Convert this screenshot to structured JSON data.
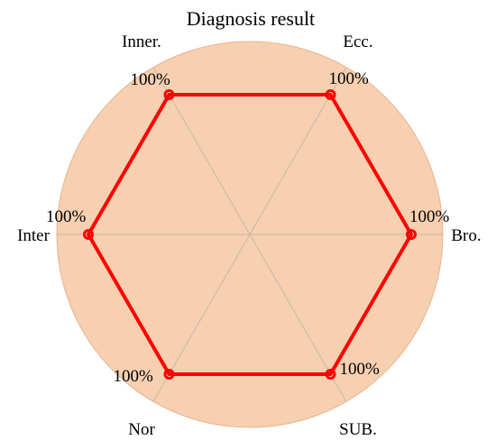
{
  "chart_data": {
    "type": "radar",
    "title": "Diagnosis result",
    "categories": [
      "Bro.",
      "Ecc.",
      "Inner.",
      "Inter",
      "Nor",
      "SUB."
    ],
    "series": [
      {
        "values": [
          100,
          100,
          100,
          100,
          100,
          100
        ],
        "color": "#ff0000"
      }
    ],
    "value_labels": [
      "100%",
      "100%",
      "100%",
      "100%",
      "100%",
      "100%"
    ],
    "rlim": [
      0,
      100
    ],
    "background_color": "#f5cba7",
    "grid_color": "#c8b8a8",
    "grid": true
  }
}
